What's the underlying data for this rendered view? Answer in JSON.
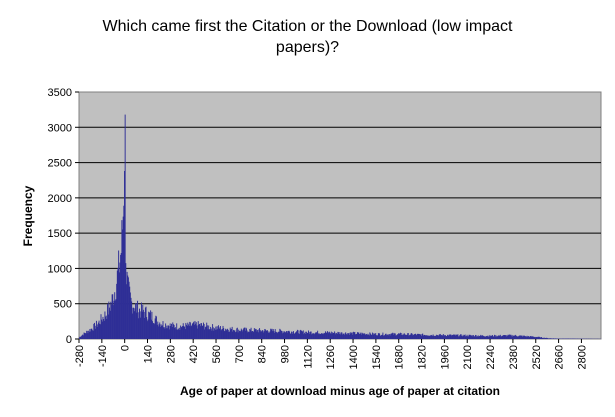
{
  "chart_data": {
    "type": "bar",
    "title_lines": [
      "Which came first the Citation or the Download (low impact",
      "papers)?"
    ],
    "xlabel": "Age of paper at download minus age of paper at citation",
    "ylabel": "Frequency",
    "ylim": [
      0,
      3500
    ],
    "yticks": [
      0,
      500,
      1000,
      1500,
      2000,
      2500,
      3000,
      3500
    ],
    "xlim": [
      -280,
      2920
    ],
    "xticks": [
      -280,
      -140,
      0,
      140,
      280,
      420,
      560,
      700,
      840,
      980,
      1120,
      1260,
      1400,
      1540,
      1680,
      1820,
      1960,
      2100,
      2240,
      2380,
      2520,
      2660,
      2800
    ],
    "grid": true,
    "legend": "none",
    "bar_color": "#2f2f96",
    "plot_bg": "#c0c0c0",
    "series": [
      {
        "x": [
          -280,
          -260,
          -240,
          -220,
          -200,
          -180,
          -160,
          -140,
          -120,
          -100,
          -80,
          -60,
          -40,
          -20,
          -10,
          -5,
          0,
          5,
          10,
          20,
          40,
          60,
          80,
          100,
          120,
          140,
          160,
          180,
          200,
          240,
          280,
          320,
          360,
          400,
          440,
          480,
          520,
          560,
          600,
          700,
          840,
          980,
          1120,
          1260,
          1400,
          1540,
          1680,
          1820,
          1960,
          2100,
          2240,
          2380,
          2450,
          2520,
          2600,
          2660,
          2800,
          2900
        ],
        "values": [
          20,
          60,
          90,
          120,
          150,
          190,
          230,
          290,
          340,
          420,
          530,
          700,
          950,
          1300,
          1800,
          2300,
          3180,
          1500,
          900,
          700,
          520,
          470,
          420,
          400,
          390,
          350,
          330,
          300,
          250,
          210,
          190,
          180,
          180,
          190,
          200,
          190,
          170,
          160,
          150,
          130,
          120,
          110,
          95,
          90,
          80,
          70,
          70,
          60,
          55,
          50,
          45,
          50,
          40,
          30,
          10,
          6,
          4,
          2
        ]
      }
    ]
  }
}
